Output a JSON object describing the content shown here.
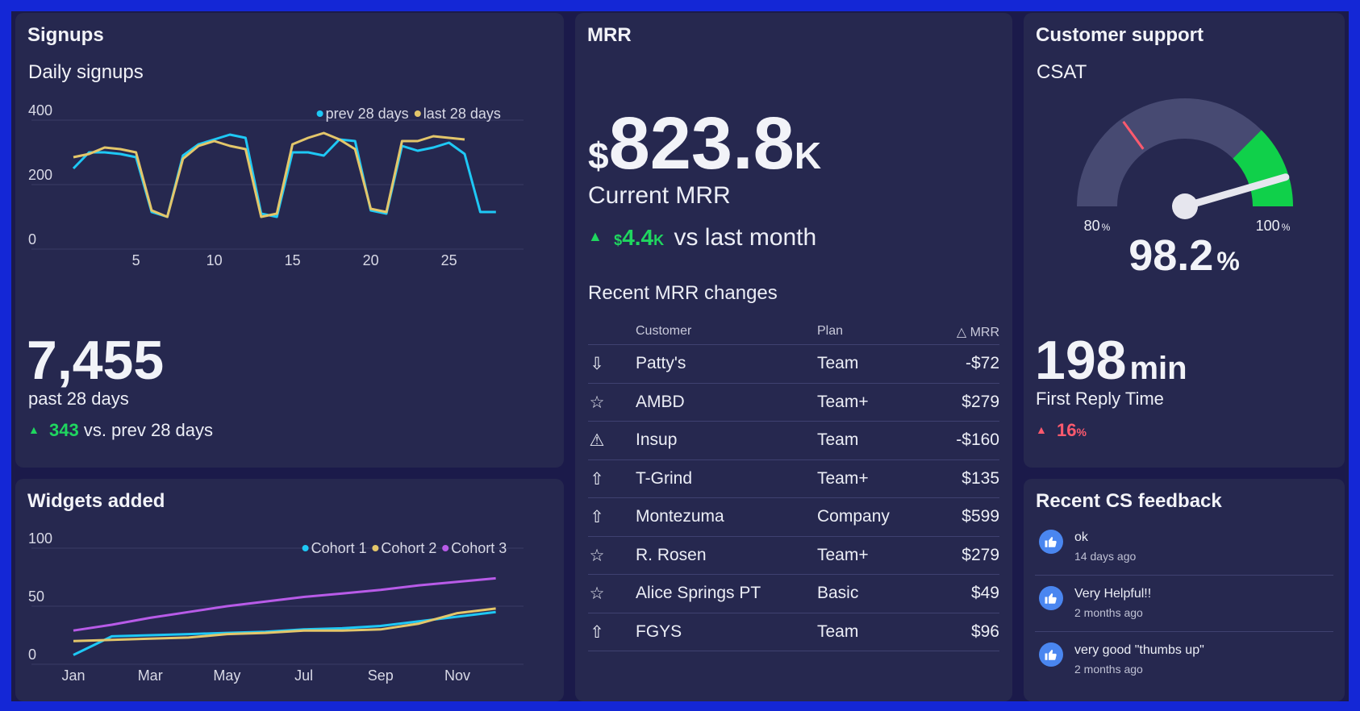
{
  "colors": {
    "background": "#1427d6",
    "panel": "#26284f",
    "cyan": "#1ec8f5",
    "yellow": "#e3c66a",
    "purple": "#b85be8",
    "positive": "#1fd65f",
    "negative": "#ff5a6e",
    "gauge_track": "#474a72",
    "gauge_good": "#10d04a"
  },
  "signups": {
    "title": "Signups",
    "subtitle": "Daily signups",
    "total": "7,455",
    "period": "past 28 days",
    "delta": "343",
    "delta_label": "vs. prev 28 days"
  },
  "widgets": {
    "title": "Widgets added"
  },
  "mrr": {
    "title": "MRR",
    "currency": "$",
    "value": "823.8",
    "unit": "K",
    "label": "Current MRR",
    "delta_currency": "$",
    "delta_value": "4.4",
    "delta_unit": "K",
    "delta_label": "vs last month",
    "table_title": "Recent MRR changes",
    "columns": {
      "customer": "Customer",
      "plan": "Plan",
      "mrr": "△ MRR"
    },
    "rows": [
      {
        "icon": "arrow-down-icon",
        "customer": "Patty's",
        "plan": "Team",
        "mrr": "-$72"
      },
      {
        "icon": "star-icon",
        "customer": "AMBD",
        "plan": "Team+",
        "mrr": "$279"
      },
      {
        "icon": "warning-icon",
        "customer": "Insup",
        "plan": "Team",
        "mrr": "-$160"
      },
      {
        "icon": "arrow-up-icon",
        "customer": "T-Grind",
        "plan": "Team+",
        "mrr": "$135"
      },
      {
        "icon": "arrow-up-icon",
        "customer": "Montezuma",
        "plan": "Company",
        "mrr": "$599"
      },
      {
        "icon": "star-icon",
        "customer": "R. Rosen",
        "plan": "Team+",
        "mrr": "$279"
      },
      {
        "icon": "star-icon",
        "customer": "Alice Springs PT",
        "plan": "Basic",
        "mrr": "$49"
      },
      {
        "icon": "arrow-up-icon",
        "customer": "FGYS",
        "plan": "Team",
        "mrr": "$96"
      }
    ]
  },
  "support": {
    "title": "Customer support",
    "csat_label": "CSAT",
    "csat_value": "98.2",
    "csat_unit": "%",
    "gauge_min": "80",
    "gauge_max": "100",
    "gauge_unit": "%",
    "gauge_needle_value": 98.2,
    "gauge_target_value": 86,
    "gauge_good_from": 95,
    "frt_value": "198",
    "frt_unit": "min",
    "frt_label": "First Reply Time",
    "frt_delta": "16",
    "frt_delta_unit": "%"
  },
  "feedback": {
    "title": "Recent CS feedback",
    "items": [
      {
        "text": "ok",
        "time": "14 days ago"
      },
      {
        "text": "Very Helpful!!",
        "time": "2 months ago"
      },
      {
        "text": "very good \"thumbs up\"",
        "time": "2 months ago"
      }
    ]
  },
  "chart_data": [
    {
      "type": "line",
      "title": "Daily signups",
      "x": [
        1,
        2,
        3,
        4,
        5,
        6,
        7,
        8,
        9,
        10,
        11,
        12,
        13,
        14,
        15,
        16,
        17,
        18,
        19,
        20,
        21,
        22,
        23,
        24,
        25,
        26,
        27,
        28
      ],
      "xticks": [
        5,
        10,
        15,
        20,
        25
      ],
      "yticks": [
        0,
        200,
        400
      ],
      "ylim": [
        0,
        400
      ],
      "xlim": [
        0,
        31
      ],
      "legend_position": "top-right",
      "series": [
        {
          "name": "prev 28 days",
          "color": "#1ec8f5",
          "values": [
            250,
            300,
            300,
            295,
            285,
            115,
            100,
            290,
            325,
            340,
            355,
            345,
            110,
            100,
            300,
            300,
            290,
            340,
            335,
            120,
            110,
            320,
            305,
            315,
            330,
            295,
            115,
            115
          ]
        },
        {
          "name": "last 28 days",
          "color": "#e3c66a",
          "values": [
            285,
            295,
            315,
            310,
            300,
            120,
            100,
            280,
            320,
            335,
            320,
            310,
            100,
            110,
            325,
            345,
            360,
            340,
            310,
            125,
            115,
            335,
            335,
            350,
            345,
            340,
            null,
            null
          ]
        }
      ]
    },
    {
      "type": "line",
      "title": "Widgets added",
      "categories": [
        "Jan",
        "Feb",
        "Mar",
        "Apr",
        "May",
        "Jun",
        "Jul",
        "Aug",
        "Sep",
        "Oct",
        "Nov",
        "Dec"
      ],
      "xticks": [
        "Jan",
        "Mar",
        "May",
        "Jul",
        "Sep",
        "Nov"
      ],
      "yticks": [
        0,
        50,
        100
      ],
      "ylim": [
        0,
        100
      ],
      "legend_position": "top-right",
      "series": [
        {
          "name": "Cohort 1",
          "color": "#1ec8f5",
          "values": [
            8,
            24,
            25,
            26,
            27,
            28,
            30,
            31,
            33,
            37,
            41,
            45
          ]
        },
        {
          "name": "Cohort 2",
          "color": "#e3c66a",
          "values": [
            20,
            21,
            22,
            23,
            26,
            27,
            29,
            29,
            30,
            35,
            44,
            48
          ]
        },
        {
          "name": "Cohort 3",
          "color": "#b85be8",
          "values": [
            29,
            34,
            40,
            45,
            50,
            54,
            58,
            61,
            64,
            68,
            71,
            74
          ]
        }
      ]
    }
  ]
}
